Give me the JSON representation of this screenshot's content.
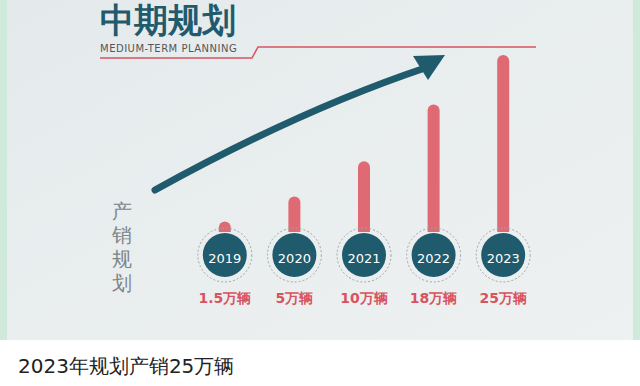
{
  "chart_data": {
    "type": "bar",
    "title": "中期规划",
    "subtitle": "MEDIUM-TERM PLANNING",
    "ylabel": "产销规划",
    "caption": "2023年规划产销25万辆",
    "categories": [
      "2019",
      "2020",
      "2021",
      "2022",
      "2023"
    ],
    "values": [
      1.5,
      5,
      10,
      18,
      25
    ],
    "value_labels": [
      "1.5万辆",
      "5万辆",
      "10万辆",
      "18万辆",
      "25万辆"
    ],
    "color": "#e06a74",
    "data_labels": true,
    "tick_labels": "x"
  }
}
